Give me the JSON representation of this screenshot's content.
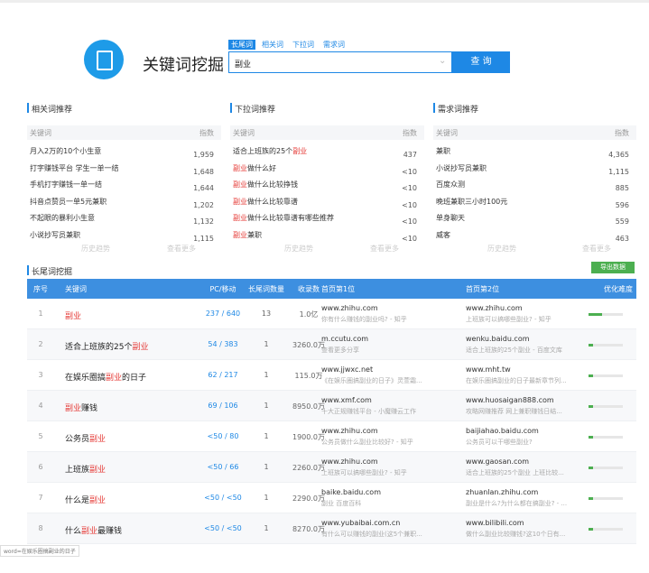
{
  "header": {
    "title": "关键词挖掘",
    "tabs": [
      "长尾词",
      "相关词",
      "下拉词",
      "需求词"
    ],
    "query": "副业",
    "button": "查 询"
  },
  "panels": [
    {
      "title": "相关词推荐",
      "columns": [
        "关键词",
        "指数"
      ],
      "rows": [
        [
          "月入2万的10个小生意",
          "1,959"
        ],
        [
          "打字赚钱平台 学生一单一结",
          "1,648"
        ],
        [
          "手机打字赚钱一单一结",
          "1,644"
        ],
        [
          "抖音点赞员一单5元兼职",
          "1,202"
        ],
        [
          "不起眼的暴利小生意",
          "1,132"
        ],
        [
          "小说抄写员兼职",
          "1,115"
        ]
      ],
      "footer": [
        "历史趋势",
        "查看更多"
      ]
    },
    {
      "title": "下拉词推荐",
      "columns": [
        "关键词",
        "指数"
      ],
      "rows": [
        [
          "适合上班族的25个副业",
          "437"
        ],
        [
          "副业做什么好",
          "<10"
        ],
        [
          "副业做什么比较挣钱",
          "<10"
        ],
        [
          "副业做什么比较靠谱",
          "<10"
        ],
        [
          "副业做什么比较靠谱有哪些推荐",
          "<10"
        ],
        [
          "副业兼职",
          "<10"
        ]
      ],
      "footer": [
        "历史趋势",
        "查看更多"
      ]
    },
    {
      "title": "需求词推荐",
      "columns": [
        "关键词",
        "指数"
      ],
      "rows": [
        [
          "兼职",
          "4,365"
        ],
        [
          "小说抄写员兼职",
          "1,115"
        ],
        [
          "百度众测",
          "885"
        ],
        [
          "晚班兼职三小时100元",
          "596"
        ],
        [
          "单身聊天",
          "559"
        ],
        [
          "威客",
          "463"
        ]
      ],
      "footer": [
        "历史趋势",
        "查看更多"
      ]
    }
  ],
  "table": {
    "title": "长尾词挖掘",
    "export": "导出数据",
    "columns": [
      "序号",
      "关键词",
      "PC/移动",
      "长尾词数量",
      "收录数",
      "首页第1位",
      "首页第2位",
      "优化难度"
    ],
    "rows": [
      {
        "index": 1,
        "keyword": "副业",
        "pc_mobile": "237 / 640",
        "count": 13,
        "indexed": "1.0亿",
        "first": {
          "url": "www.zhihu.com",
          "title": "你有什么赚钱的副业吗? - 知乎"
        },
        "second": {
          "url": "www.zhihu.com",
          "title": "上班族可以搞哪些副业? - 知乎"
        },
        "difficulty": 40
      },
      {
        "index": 2,
        "keyword": "适合上班族的25个副业",
        "pc_mobile": "54 / 383",
        "count": 1,
        "indexed": "3260.0万",
        "first": {
          "url": "m.ccutu.com",
          "title": "查看更多分享"
        },
        "second": {
          "url": "wenku.baidu.com",
          "title": "适合上班族的25个副业 - 百度文库"
        },
        "difficulty": 12
      },
      {
        "index": 3,
        "keyword": "在娱乐圈搞副业的日子",
        "pc_mobile": "62 / 217",
        "count": 1,
        "indexed": "115.0万",
        "first": {
          "url": "www.jjwxc.net",
          "title": "《在娱乐圈搞副业的日子》灵萱霜..."
        },
        "second": {
          "url": "www.mht.tw",
          "title": "在娱乐圈搞副业的日子最新章节列..."
        },
        "difficulty": 12
      },
      {
        "index": 4,
        "keyword": "副业赚钱",
        "pc_mobile": "69 / 106",
        "count": 1,
        "indexed": "8950.0万",
        "first": {
          "url": "www.xmf.com",
          "title": "十大正规赚钱平台 - 小魔赚云工作"
        },
        "second": {
          "url": "www.huosaigan888.com",
          "title": "攻略网赚推荐 网上兼职赚钱日结..."
        },
        "difficulty": 12
      },
      {
        "index": 5,
        "keyword": "公务员副业",
        "pc_mobile": "<50 / 80",
        "count": 1,
        "indexed": "1900.0万",
        "first": {
          "url": "www.zhihu.com",
          "title": "公务员做什么副业比较好? - 知乎"
        },
        "second": {
          "url": "baijiahao.baidu.com",
          "title": "公务员可以干哪些副业?"
        },
        "difficulty": 12
      },
      {
        "index": 6,
        "keyword": "上班族副业",
        "pc_mobile": "<50 / 66",
        "count": 1,
        "indexed": "2260.0万",
        "first": {
          "url": "www.zhihu.com",
          "title": "上班族可以搞哪些副业? - 知乎"
        },
        "second": {
          "url": "www.gaosan.com",
          "title": "适合上班族的25个副业 上班比较..."
        },
        "difficulty": 12
      },
      {
        "index": 7,
        "keyword": "什么是副业",
        "pc_mobile": "<50 / <50",
        "count": 1,
        "indexed": "2290.0万",
        "first": {
          "url": "baike.baidu.com",
          "title": "副业 百度百科"
        },
        "second": {
          "url": "zhuanlan.zhihu.com",
          "title": "副业是什么?为什么都在搞副业? - ..."
        },
        "difficulty": 12
      },
      {
        "index": 8,
        "keyword": "什么副业最赚钱",
        "pc_mobile": "<50 / <50",
        "count": 1,
        "indexed": "8270.0万",
        "first": {
          "url": "www.yubaibai.com.cn",
          "title": "有什么可以赚钱的副业(这5个兼职..."
        },
        "second": {
          "url": "www.bilibili.com",
          "title": "做什么副业比较赚钱?这10个日有..."
        },
        "difficulty": 12
      }
    ]
  },
  "status": "word=在娱乐圈搞副业的日子"
}
